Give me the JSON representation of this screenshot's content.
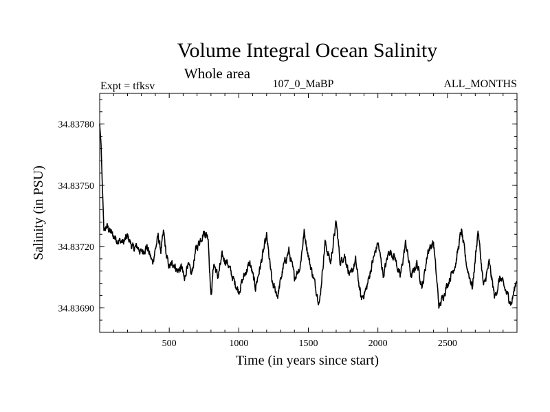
{
  "chart_data": {
    "type": "line",
    "title": "Volume Integral Ocean Salinity",
    "subtitle": "Whole area",
    "experiment": "Expt = tfksv",
    "run_label": "107_0_MaBP",
    "period_label": "ALL_MONTHS",
    "xlabel": "Time (in years since start)",
    "ylabel": "Salinity (in PSU)",
    "xlim": [
      0,
      3000
    ],
    "ylim": [
      34.83678,
      34.83795
    ],
    "x_ticks": [
      500,
      1000,
      1500,
      2000,
      2500
    ],
    "x_tick_labels": [
      "500",
      "1000",
      "1500",
      "2000",
      "2500"
    ],
    "y_ticks": [
      34.8369,
      34.8372,
      34.8375,
      34.8378
    ],
    "y_tick_labels": [
      "34.83690",
      "34.83720",
      "34.83750",
      "34.83780"
    ],
    "grid": false,
    "series": [
      {
        "name": "salinity",
        "color": "#000000",
        "x": [
          0,
          10,
          20,
          30,
          50,
          80,
          100,
          130,
          170,
          200,
          240,
          270,
          300,
          340,
          380,
          420,
          440,
          460,
          480,
          500,
          530,
          560,
          590,
          610,
          630,
          660,
          690,
          720,
          750,
          780,
          800,
          820,
          850,
          880,
          920,
          960,
          1000,
          1040,
          1080,
          1120,
          1160,
          1200,
          1240,
          1280,
          1320,
          1360,
          1400,
          1440,
          1470,
          1510,
          1550,
          1580,
          1620,
          1660,
          1700,
          1730,
          1760,
          1800,
          1840,
          1880,
          1920,
          1960,
          2000,
          2040,
          2080,
          2120,
          2160,
          2200,
          2240,
          2280,
          2320,
          2360,
          2400,
          2440,
          2480,
          2520,
          2560,
          2600,
          2640,
          2680,
          2720,
          2760,
          2800,
          2840,
          2880,
          2920,
          2960,
          3000
        ],
        "y": [
          34.8378,
          34.8377,
          34.83748,
          34.83728,
          34.8373,
          34.83727,
          34.83725,
          34.83723,
          34.83722,
          34.83725,
          34.83719,
          34.8372,
          34.83717,
          34.8372,
          34.83712,
          34.83725,
          34.83718,
          34.83727,
          34.83715,
          34.8371,
          34.83712,
          34.83708,
          34.8371,
          34.83703,
          34.83712,
          34.83706,
          34.83718,
          34.83723,
          34.83727,
          34.83725,
          34.83695,
          34.83712,
          34.83705,
          34.83715,
          34.83712,
          34.83704,
          34.83698,
          34.83706,
          34.83712,
          34.837,
          34.83712,
          34.83725,
          34.83702,
          34.83696,
          34.8371,
          34.83718,
          34.83705,
          34.8371,
          34.83727,
          34.83712,
          34.83701,
          34.83692,
          34.83722,
          34.83712,
          34.83732,
          34.83712,
          34.83716,
          34.83705,
          34.83713,
          34.83694,
          34.837,
          34.83712,
          34.83722,
          34.83706,
          34.83718,
          34.83715,
          34.83705,
          34.83722,
          34.83705,
          34.83712,
          34.837,
          34.83718,
          34.83722,
          34.8369,
          34.83698,
          34.83705,
          34.83712,
          34.83728,
          34.8371,
          34.837,
          34.83728,
          34.837,
          34.83712,
          34.83695,
          34.83705,
          34.83698,
          34.83692,
          34.83705
        ]
      }
    ]
  }
}
